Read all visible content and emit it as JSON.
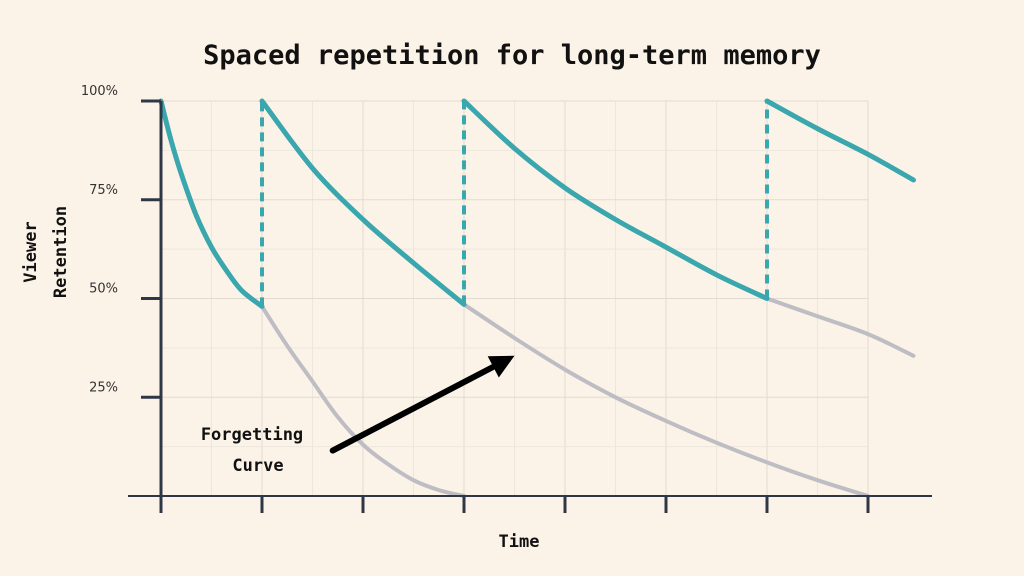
{
  "chart_data": {
    "type": "line",
    "title": "Spaced repetition for long-term memory",
    "xlabel": "Time",
    "ylabel_lines": [
      "Viewer",
      "Retention"
    ],
    "ylim": [
      0,
      100
    ],
    "xlim": [
      0,
      7.7
    ],
    "y_ticks": [
      {
        "value": 100,
        "label": "100%"
      },
      {
        "value": 75,
        "label": "75%"
      },
      {
        "value": 50,
        "label": "50%"
      },
      {
        "value": 25,
        "label": "25%"
      }
    ],
    "x_ticks": [
      0,
      1,
      2,
      3,
      4,
      5,
      6,
      7
    ],
    "grid": true,
    "series": [
      {
        "role": "retention",
        "color": "#3aa6ad",
        "segments": [
          {
            "points": [
              [
                0,
                100
              ],
              [
                0.1,
                90
              ],
              [
                0.2,
                81.6
              ],
              [
                0.35,
                71
              ],
              [
                0.5,
                63
              ],
              [
                0.65,
                57
              ],
              [
                0.8,
                52
              ],
              [
                1,
                48
              ]
            ]
          },
          {
            "points": [
              [
                1,
                100
              ],
              [
                1.5,
                83
              ],
              [
                2,
                70
              ],
              [
                2.5,
                59
              ],
              [
                3,
                48.5
              ]
            ]
          },
          {
            "points": [
              [
                3,
                100
              ],
              [
                3.5,
                88
              ],
              [
                4,
                78
              ],
              [
                4.5,
                70
              ],
              [
                5,
                63
              ],
              [
                5.5,
                56
              ],
              [
                6,
                50
              ]
            ]
          },
          {
            "points": [
              [
                6,
                100
              ],
              [
                6.5,
                93
              ],
              [
                7,
                86.5
              ],
              [
                7.45,
                80
              ]
            ]
          }
        ]
      },
      {
        "role": "forgetting",
        "color": "#bdbdc3",
        "segments": [
          {
            "points": [
              [
                1,
                48
              ],
              [
                1.25,
                38
              ],
              [
                1.5,
                29
              ],
              [
                1.75,
                20
              ],
              [
                2,
                13
              ],
              [
                2.25,
                8
              ],
              [
                2.5,
                4
              ],
              [
                2.75,
                1.5
              ],
              [
                3,
                0
              ]
            ]
          },
          {
            "points": [
              [
                3,
                48.5
              ],
              [
                3.5,
                40
              ],
              [
                4,
                32
              ],
              [
                4.5,
                25
              ],
              [
                5,
                19
              ],
              [
                5.5,
                13.5
              ],
              [
                6,
                8.5
              ],
              [
                6.5,
                4
              ],
              [
                7,
                0
              ]
            ]
          },
          {
            "points": [
              [
                6,
                50
              ],
              [
                6.5,
                45.5
              ],
              [
                7,
                41
              ],
              [
                7.45,
                35.5
              ]
            ]
          }
        ]
      }
    ],
    "review_markers": [
      {
        "x": 1,
        "from": 48,
        "to": 100
      },
      {
        "x": 3,
        "from": 48.5,
        "to": 100
      },
      {
        "x": 6,
        "from": 50,
        "to": 100
      }
    ],
    "annotation": {
      "lines": [
        "Forgetting",
        "Curve"
      ],
      "arrow_from": [
        1.7,
        11.5
      ],
      "arrow_to": [
        3.5,
        35.5
      ]
    }
  }
}
